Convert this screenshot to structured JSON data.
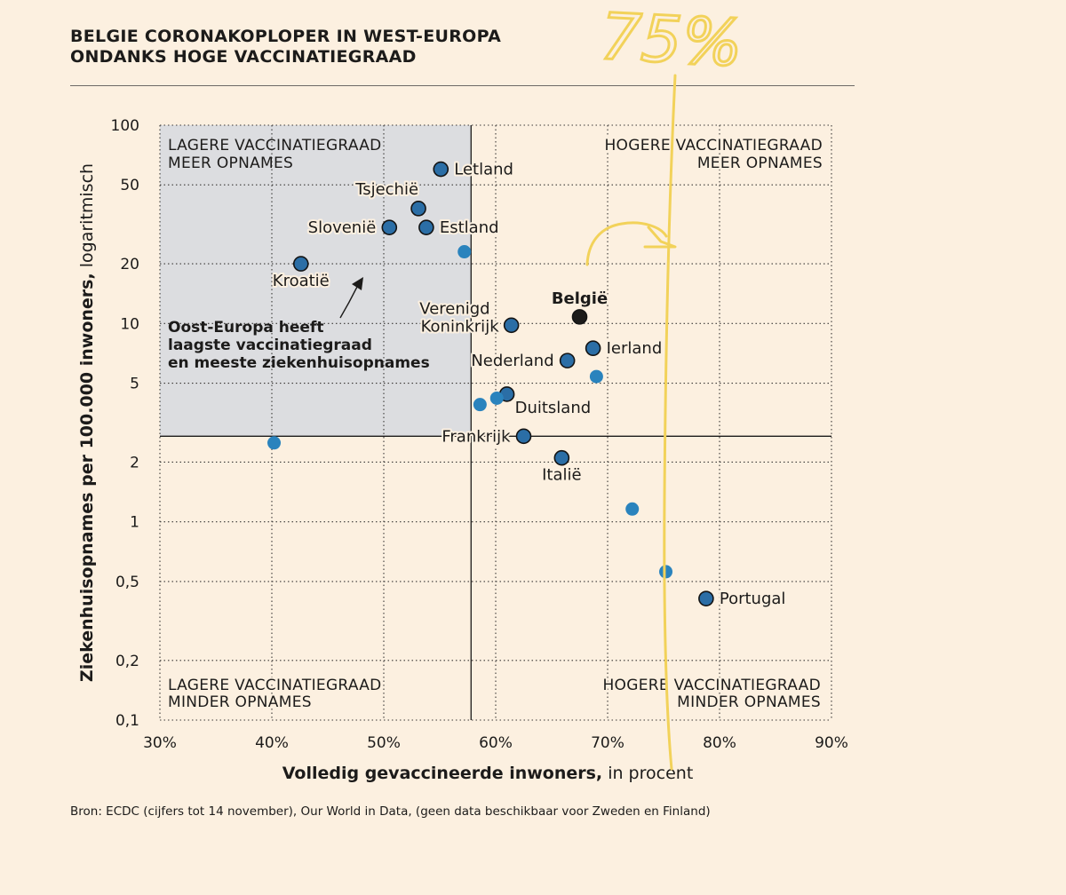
{
  "header": {
    "title_line1": "BELGIE CORONAKOPLOPER IN WEST-EUROPA",
    "title_line2": "ONDANKS HOGE VACCINATIEGRAAD"
  },
  "source": "Bron: ECDC (cijfers tot 14 november), Our World in Data, (geen data beschikbaar voor Zweden en Finland)",
  "chart_data": {
    "type": "scatter",
    "xlabel_bold": "Volledig gevaccineerde inwoners,",
    "xlabel_rest": " in procent",
    "ylabel_bold": "Ziekenhuisopnames per 100.000 inwoners,",
    "ylabel_rest": " logaritmisch",
    "xlim": [
      30,
      90
    ],
    "ylim": [
      0.1,
      100
    ],
    "yscale": "log",
    "x_ticks": [
      30,
      40,
      50,
      60,
      70,
      80,
      90
    ],
    "x_tick_labels": [
      "30%",
      "40%",
      "50%",
      "60%",
      "70%",
      "80%",
      "90%"
    ],
    "y_ticks": [
      0.1,
      0.2,
      0.5,
      1,
      2,
      5,
      10,
      20,
      50,
      100
    ],
    "y_tick_labels": [
      "0,1",
      "0,2",
      "0,5",
      "1",
      "2",
      "5",
      "10",
      "20",
      "50",
      "100"
    ],
    "reference_lines": {
      "x": 57.8,
      "y": 2.7
    },
    "quadrants": {
      "top_left": [
        "LAGERE VACCINATIEGRAAD",
        "MEER OPNAMES"
      ],
      "top_right": [
        "HOGERE VACCINATIEGRAAD",
        "MEER OPNAMES"
      ],
      "bottom_left": [
        "LAGERE VACCINATIEGRAAD",
        "MINDER OPNAMES"
      ],
      "bottom_right": [
        "HOGERE VACCINATIEGRAAD",
        "MINDER OPNAMES"
      ]
    },
    "annotation": {
      "lines": [
        "Oost-Europa heeft",
        "laagste vaccinatiegraad",
        "en meeste ziekenhuisopnames"
      ]
    },
    "handwritten": {
      "text": "75%",
      "color": "#f2d25a"
    },
    "colors": {
      "labeled": "#2b6ea6",
      "unlabeled": "#2a83bd",
      "highlight": "#1c1b1a",
      "shade": "#dcdde0",
      "background": "#fcf0e0"
    },
    "points": [
      {
        "label": "Letland",
        "x": 55.1,
        "y": 60,
        "style": "labeled",
        "label_pos": "right"
      },
      {
        "label": "Tsjechië",
        "x": 53.1,
        "y": 38,
        "style": "labeled",
        "label_pos": "top-left"
      },
      {
        "label": "Slovenië",
        "x": 50.5,
        "y": 30.5,
        "style": "labeled",
        "label_pos": "left"
      },
      {
        "label": "Estland",
        "x": 53.8,
        "y": 30.5,
        "style": "labeled",
        "label_pos": "right"
      },
      {
        "label": "",
        "x": 57.2,
        "y": 23,
        "style": "unlabeled"
      },
      {
        "label": "Kroatië",
        "x": 42.6,
        "y": 20,
        "style": "labeled",
        "label_pos": "bottom"
      },
      {
        "label": "België",
        "x": 67.5,
        "y": 10.8,
        "style": "highlight",
        "label_pos": "top"
      },
      {
        "label": "Verenigd Koninkrijk",
        "x": 61.4,
        "y": 9.8,
        "style": "labeled",
        "label_pos": "left-two-line"
      },
      {
        "label": "Ierland",
        "x": 68.7,
        "y": 7.5,
        "style": "labeled",
        "label_pos": "right"
      },
      {
        "label": "Nederland",
        "x": 66.4,
        "y": 6.5,
        "style": "labeled",
        "label_pos": "left"
      },
      {
        "label": "",
        "x": 69.0,
        "y": 5.4,
        "style": "unlabeled"
      },
      {
        "label": "Duitsland",
        "x": 61.0,
        "y": 4.4,
        "style": "labeled",
        "label_pos": "bottom-right"
      },
      {
        "label": "",
        "x": 60.1,
        "y": 4.2,
        "style": "unlabeled"
      },
      {
        "label": "",
        "x": 58.6,
        "y": 3.9,
        "style": "unlabeled"
      },
      {
        "label": "Frankrijk",
        "x": 62.5,
        "y": 2.7,
        "style": "labeled",
        "label_pos": "left"
      },
      {
        "label": "",
        "x": 40.2,
        "y": 2.5,
        "style": "unlabeled"
      },
      {
        "label": "Italië",
        "x": 65.9,
        "y": 2.1,
        "style": "labeled",
        "label_pos": "bottom"
      },
      {
        "label": "",
        "x": 72.2,
        "y": 1.16,
        "style": "unlabeled"
      },
      {
        "label": "",
        "x": 75.2,
        "y": 0.56,
        "style": "unlabeled"
      },
      {
        "label": "Portugal",
        "x": 78.8,
        "y": 0.41,
        "style": "labeled",
        "label_pos": "right"
      }
    ]
  }
}
